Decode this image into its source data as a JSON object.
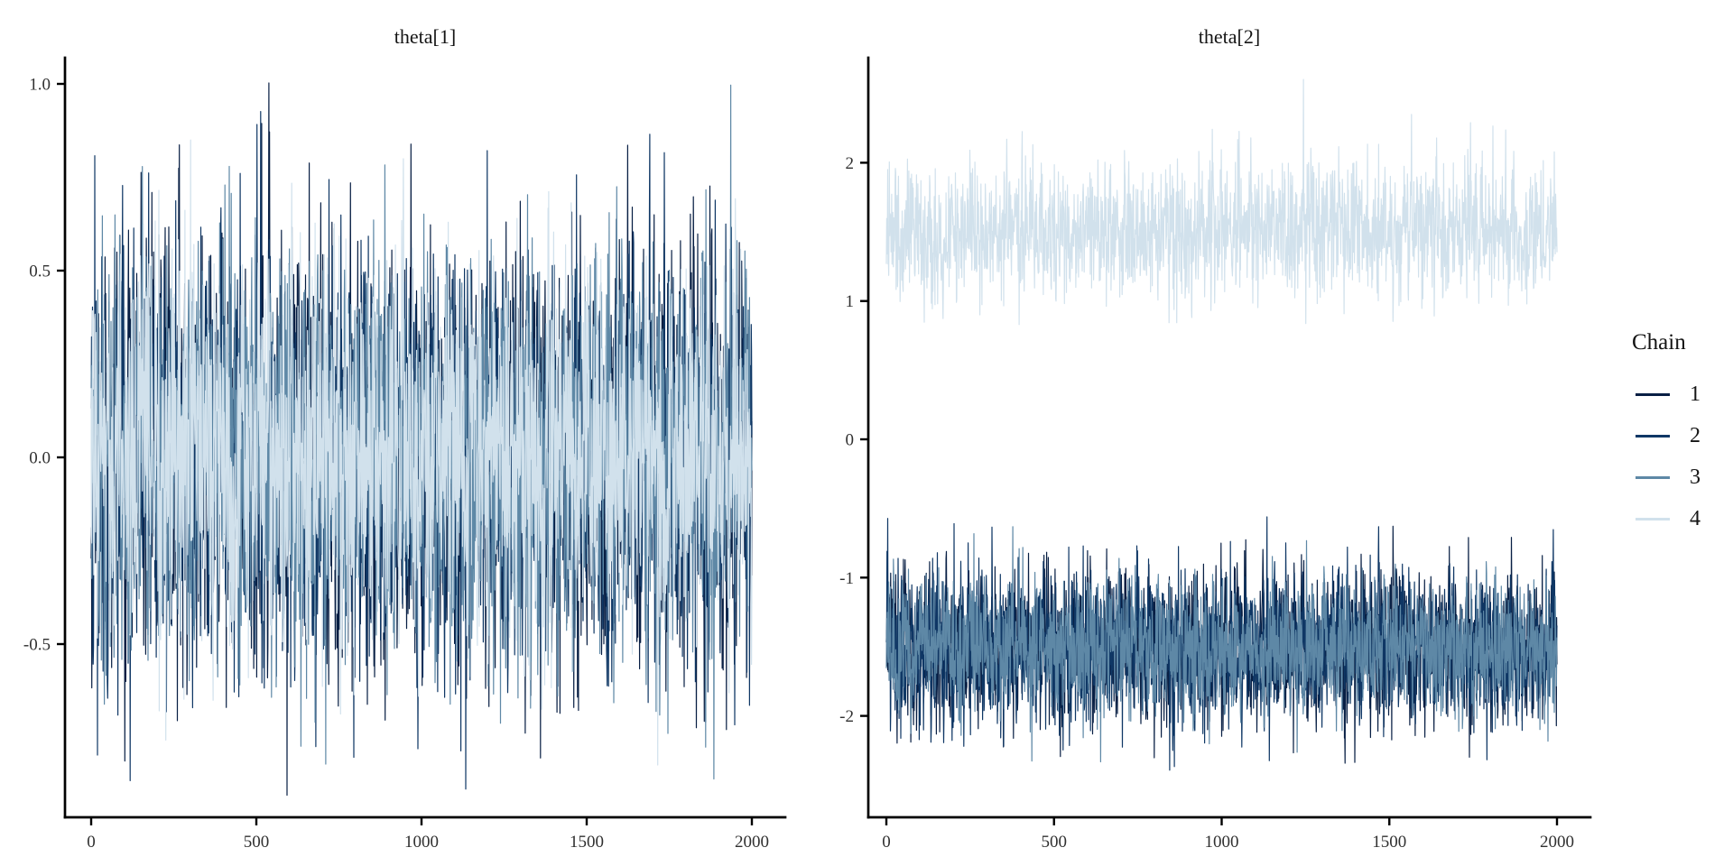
{
  "figure": {
    "background_color": "#ffffff",
    "axis_color": "#000000",
    "tick_label_color": "#303030",
    "title_color": "#141414"
  },
  "legend": {
    "title": "Chain",
    "entries": [
      {
        "label": "1",
        "color": "#081f44"
      },
      {
        "label": "2",
        "color": "#0f3765"
      },
      {
        "label": "3",
        "color": "#5e88a6"
      },
      {
        "label": "4",
        "color": "#d1e1ec"
      }
    ]
  },
  "chart_data": [
    {
      "type": "line",
      "subtype": "mcmc-trace",
      "title": "theta[1]",
      "xlabel": "",
      "ylabel": "",
      "grid": false,
      "xlim": [
        0,
        2000
      ],
      "ylim": [
        -0.96,
        1.07
      ],
      "x_ticks": [
        {
          "value": 0,
          "label": "0"
        },
        {
          "value": 500,
          "label": "500"
        },
        {
          "value": 1000,
          "label": "1000"
        },
        {
          "value": 1500,
          "label": "1500"
        },
        {
          "value": 2000,
          "label": "2000"
        }
      ],
      "y_ticks": [
        {
          "value": 1.0,
          "label": "1.0"
        },
        {
          "value": 0.5,
          "label": "0.5"
        },
        {
          "value": 0.0,
          "label": "0.0"
        },
        {
          "value": -0.5,
          "label": "-0.5"
        }
      ],
      "n_iterations": 2000,
      "series": [
        {
          "name": "1",
          "chain": 1,
          "mean": 0.0,
          "sd": 0.27,
          "min": -0.9,
          "max": 0.95
        },
        {
          "name": "2",
          "chain": 2,
          "mean": 0.0,
          "sd": 0.27,
          "min": -0.9,
          "max": 0.93
        },
        {
          "name": "3",
          "chain": 3,
          "mean": 0.0,
          "sd": 0.26,
          "min": -0.85,
          "max": 0.8
        },
        {
          "name": "4",
          "chain": 4,
          "mean": 0.0,
          "sd": 0.25,
          "min": -0.93,
          "max": 1.0
        }
      ]
    },
    {
      "type": "line",
      "subtype": "mcmc-trace",
      "title": "theta[2]",
      "xlabel": "",
      "ylabel": "",
      "grid": false,
      "xlim": [
        0,
        2000
      ],
      "ylim": [
        -2.73,
        2.76
      ],
      "x_ticks": [
        {
          "value": 0,
          "label": "0"
        },
        {
          "value": 500,
          "label": "500"
        },
        {
          "value": 1000,
          "label": "1000"
        },
        {
          "value": 1500,
          "label": "1500"
        },
        {
          "value": 2000,
          "label": "2000"
        }
      ],
      "y_ticks": [
        {
          "value": 2,
          "label": "2"
        },
        {
          "value": 1,
          "label": "1"
        },
        {
          "value": 0,
          "label": "0"
        },
        {
          "value": -1,
          "label": "-1"
        },
        {
          "value": -2,
          "label": "-2"
        }
      ],
      "n_iterations": 2000,
      "series": [
        {
          "name": "1",
          "chain": 1,
          "mean": -1.5,
          "sd": 0.27,
          "min": -2.55,
          "max": -0.7
        },
        {
          "name": "2",
          "chain": 2,
          "mean": -1.5,
          "sd": 0.27,
          "min": -2.5,
          "max": -0.75
        },
        {
          "name": "3",
          "chain": 3,
          "mean": -1.5,
          "sd": 0.24,
          "min": -2.4,
          "max": -0.8
        },
        {
          "name": "4",
          "chain": 4,
          "mean": 1.5,
          "sd": 0.24,
          "min": 0.9,
          "max": 2.35
        }
      ]
    }
  ]
}
